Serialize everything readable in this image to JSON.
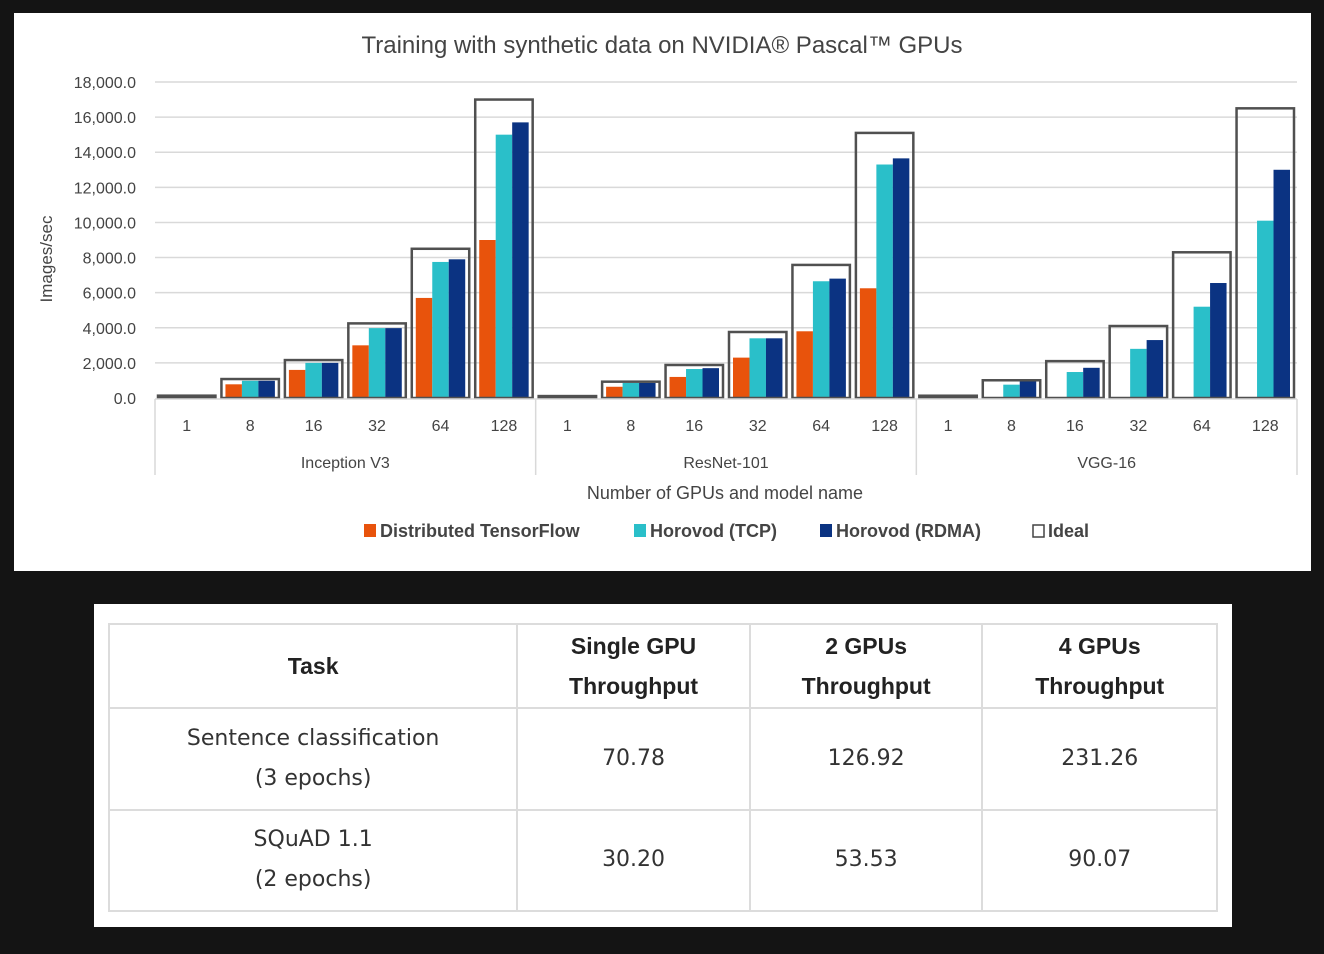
{
  "chart_data": {
    "type": "bar",
    "title": "Training with synthetic data on NVIDIA® Pascal™ GPUs",
    "xlabel": "Number of GPUs and model name",
    "ylabel": "Images/sec",
    "ylim": [
      0,
      18000
    ],
    "yticks": [
      "0.0",
      "2,000.0",
      "4,000.0",
      "6,000.0",
      "8,000.0",
      "10,000.0",
      "12,000.0",
      "14,000.0",
      "16,000.0",
      "18,000.0"
    ],
    "ytick_values": [
      0,
      2000,
      4000,
      6000,
      8000,
      10000,
      12000,
      14000,
      16000,
      18000
    ],
    "grid": true,
    "legend_position": "bottom",
    "groups": [
      "Inception V3",
      "ResNet-101",
      "VGG-16"
    ],
    "categories": [
      "1",
      "8",
      "16",
      "32",
      "64",
      "128"
    ],
    "series": [
      {
        "name": "Distributed TensorFlow",
        "color": "#e8530c",
        "style": "filled",
        "values": [
          [
            0,
            780,
            1600,
            3000,
            5700,
            9000
          ],
          [
            0,
            640,
            1200,
            2300,
            3800,
            6250
          ],
          [
            0,
            0,
            0,
            0,
            0,
            0
          ]
        ]
      },
      {
        "name": "Horovod (TCP)",
        "color": "#2abfc9",
        "style": "filled",
        "values": [
          [
            0,
            980,
            2000,
            3980,
            7750,
            15000
          ],
          [
            0,
            860,
            1650,
            3400,
            6650,
            13300
          ],
          [
            0,
            760,
            1480,
            2800,
            5200,
            10100
          ]
        ]
      },
      {
        "name": "Horovod (RDMA)",
        "color": "#0b3382",
        "style": "filled",
        "values": [
          [
            0,
            980,
            2000,
            3980,
            7900,
            15700
          ],
          [
            0,
            860,
            1700,
            3400,
            6800,
            13650
          ],
          [
            0,
            940,
            1720,
            3300,
            6550,
            13000
          ]
        ]
      },
      {
        "name": "Ideal",
        "color": "#505050",
        "style": "outline",
        "values": [
          [
            133,
            1080,
            2160,
            4250,
            8500,
            17000
          ],
          [
            110,
            930,
            1880,
            3760,
            7580,
            15100
          ],
          [
            130,
            1010,
            2100,
            4100,
            8300,
            16500
          ]
        ]
      }
    ]
  },
  "table": {
    "headers": [
      {
        "line1": "Task",
        "line2": ""
      },
      {
        "line1": "Single GPU",
        "line2": "Throughput"
      },
      {
        "line1": "2 GPUs",
        "line2": "Throughput"
      },
      {
        "line1": "4 GPUs",
        "line2": "Throughput"
      }
    ],
    "rows": [
      {
        "task_line1": "Sentence classification",
        "task_line2": "(3 epochs)",
        "single": "70.78",
        "two": "126.92",
        "four": "231.26"
      },
      {
        "task_line1": "SQuAD 1.1",
        "task_line2": "(2 epochs)",
        "single": "30.20",
        "two": "53.53",
        "four": "90.07"
      }
    ]
  }
}
